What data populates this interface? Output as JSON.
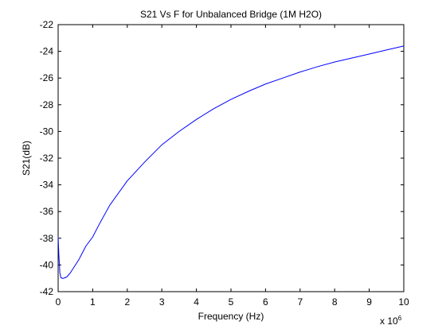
{
  "chart_data": {
    "type": "line",
    "title": "S21 Vs F for Unbalanced Bridge (1M H2O)",
    "xlabel": "Frequency (Hz)",
    "ylabel": "S21(dB)",
    "x_multiplier_base": "x 10",
    "x_multiplier_exponent": "6",
    "xlim": [
      0,
      10
    ],
    "ylim": [
      -42,
      -22
    ],
    "xticks": [
      0,
      1,
      2,
      3,
      4,
      5,
      6,
      7,
      8,
      9,
      10
    ],
    "xtick_labels": [
      "0",
      "1",
      "2",
      "3",
      "4",
      "5",
      "6",
      "7",
      "8",
      "9",
      "10"
    ],
    "yticks": [
      -42,
      -40,
      -38,
      -36,
      -34,
      -32,
      -30,
      -28,
      -26,
      -24,
      -22
    ],
    "ytick_labels": [
      "-42",
      "-40",
      "-38",
      "-36",
      "-34",
      "-32",
      "-30",
      "-28",
      "-26",
      "-24",
      "-22"
    ],
    "grid": false,
    "series": [
      {
        "color": "#0000ff",
        "x": [
          0.0,
          0.02,
          0.05,
          0.08,
          0.12,
          0.15,
          0.2,
          0.25,
          0.3,
          0.35,
          0.4,
          0.5,
          0.6,
          0.7,
          0.8,
          1.0,
          1.2,
          1.5,
          2.0,
          2.5,
          3.0,
          3.5,
          4.0,
          4.5,
          5.0,
          5.5,
          6.0,
          6.5,
          7.0,
          7.5,
          8.0,
          8.5,
          9.0,
          9.5,
          10.0
        ],
        "y": [
          -37.9,
          -39.2,
          -40.6,
          -40.95,
          -41.0,
          -41.0,
          -40.95,
          -40.9,
          -40.75,
          -40.6,
          -40.4,
          -40.0,
          -39.6,
          -39.1,
          -38.6,
          -37.9,
          -36.9,
          -35.5,
          -33.7,
          -32.3,
          -31.0,
          -30.0,
          -29.1,
          -28.3,
          -27.6,
          -27.0,
          -26.45,
          -26.0,
          -25.55,
          -25.15,
          -24.8,
          -24.5,
          -24.2,
          -23.9,
          -23.6
        ]
      }
    ]
  }
}
